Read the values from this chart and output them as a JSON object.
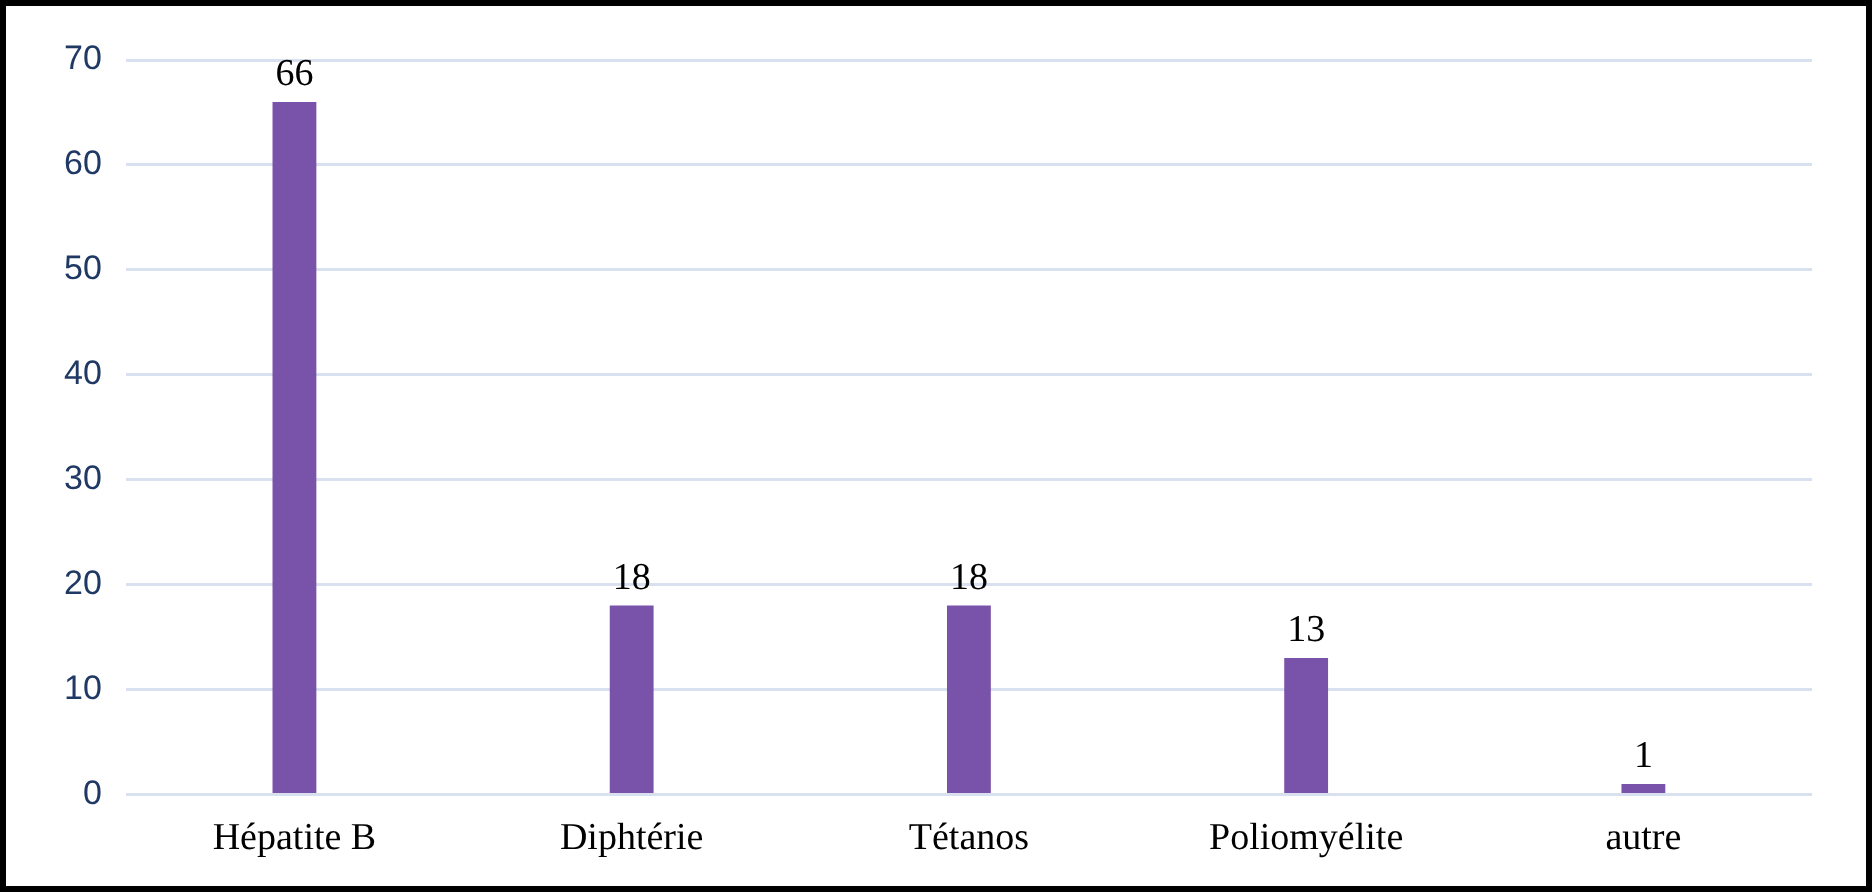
{
  "chart_data": {
    "type": "bar",
    "categories": [
      "Hépatite B",
      "Diphtérie",
      "Tétanos",
      "Poliomyélite",
      "autre"
    ],
    "values": [
      66,
      18,
      18,
      13,
      1
    ],
    "color": "#7953a9",
    "ylim": [
      0,
      70
    ],
    "yticks": [
      0,
      10,
      20,
      30,
      40,
      50,
      60,
      70
    ],
    "grid": "y",
    "data_labels": true,
    "legend": false
  }
}
